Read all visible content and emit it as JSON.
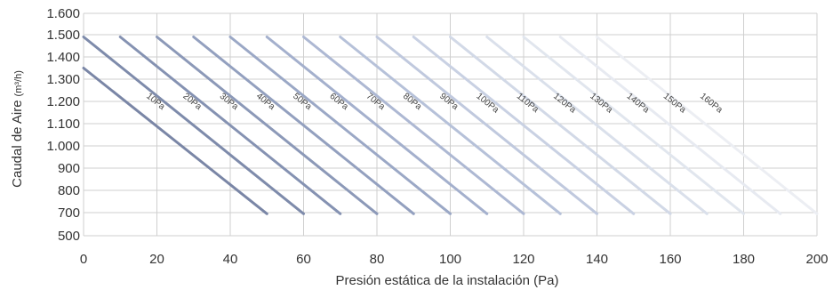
{
  "chart_data": {
    "type": "line",
    "title": "",
    "xlabel": "Presión estática de la instalación (Pa)",
    "ylabel": "Caudal de Aire",
    "ylabel_unit": "(m³/h)",
    "xlim": [
      0,
      200
    ],
    "ylim": [
      500,
      1600
    ],
    "x_ticks": [
      "0",
      "20",
      "40",
      "60",
      "80",
      "100",
      "120",
      "140",
      "160",
      "180",
      "200"
    ],
    "y_ticks": [
      "500",
      "700",
      "800",
      "900",
      "1.000",
      "1.100",
      "1.200",
      "1.300",
      "1.400",
      "1.500",
      "1.600"
    ],
    "y_tick_values": [
      500,
      700,
      800,
      900,
      1000,
      1100,
      1200,
      1300,
      1400,
      1500,
      1600
    ],
    "grid": true,
    "series": [
      {
        "name": "10Pa",
        "x": [
          0,
          50
        ],
        "y": [
          1350,
          690
        ],
        "color": "#7a86a6"
      },
      {
        "name": "20Pa",
        "x": [
          0,
          60
        ],
        "y": [
          1490,
          690
        ],
        "color": "#7e8bab"
      },
      {
        "name": "30Pa",
        "x": [
          10,
          70
        ],
        "y": [
          1490,
          690
        ],
        "color": "#8592b2"
      },
      {
        "name": "40Pa",
        "x": [
          20,
          80
        ],
        "y": [
          1490,
          690
        ],
        "color": "#8c99b8"
      },
      {
        "name": "50Pa",
        "x": [
          30,
          90
        ],
        "y": [
          1490,
          690
        ],
        "color": "#93a0bf"
      },
      {
        "name": "60Pa",
        "x": [
          40,
          100
        ],
        "y": [
          1490,
          690
        ],
        "color": "#9ba8c6"
      },
      {
        "name": "70Pa",
        "x": [
          50,
          110
        ],
        "y": [
          1490,
          690
        ],
        "color": "#a4b0cd"
      },
      {
        "name": "80Pa",
        "x": [
          60,
          120
        ],
        "y": [
          1490,
          690
        ],
        "color": "#adb8d3"
      },
      {
        "name": "90Pa",
        "x": [
          70,
          130
        ],
        "y": [
          1490,
          690
        ],
        "color": "#b6c1d9"
      },
      {
        "name": "100Pa",
        "x": [
          80,
          140
        ],
        "y": [
          1490,
          690
        ],
        "color": "#c0c9de"
      },
      {
        "name": "110Pa",
        "x": [
          90,
          150
        ],
        "y": [
          1490,
          690
        ],
        "color": "#c9d1e3"
      },
      {
        "name": "120Pa",
        "x": [
          100,
          160
        ],
        "y": [
          1490,
          690
        ],
        "color": "#d2d9e7"
      },
      {
        "name": "130Pa",
        "x": [
          110,
          170
        ],
        "y": [
          1490,
          690
        ],
        "color": "#dae0eb"
      },
      {
        "name": "140Pa",
        "x": [
          120,
          180
        ],
        "y": [
          1490,
          690
        ],
        "color": "#e1e6ee"
      },
      {
        "name": "150Pa",
        "x": [
          130,
          190
        ],
        "y": [
          1490,
          690
        ],
        "color": "#e7eaf1"
      },
      {
        "name": "160Pa",
        "x": [
          140,
          200
        ],
        "y": [
          1490,
          690
        ],
        "color": "#eceef3"
      }
    ],
    "label_positions_x": [
      17,
      27,
      37,
      47,
      57,
      67,
      77,
      87,
      97,
      107,
      118,
      128,
      138,
      148,
      158,
      168
    ],
    "label_positions_y": [
      1180,
      1180,
      1180,
      1180,
      1180,
      1180,
      1180,
      1180,
      1180,
      1180,
      1180,
      1180,
      1180,
      1180,
      1180,
      1180
    ]
  }
}
